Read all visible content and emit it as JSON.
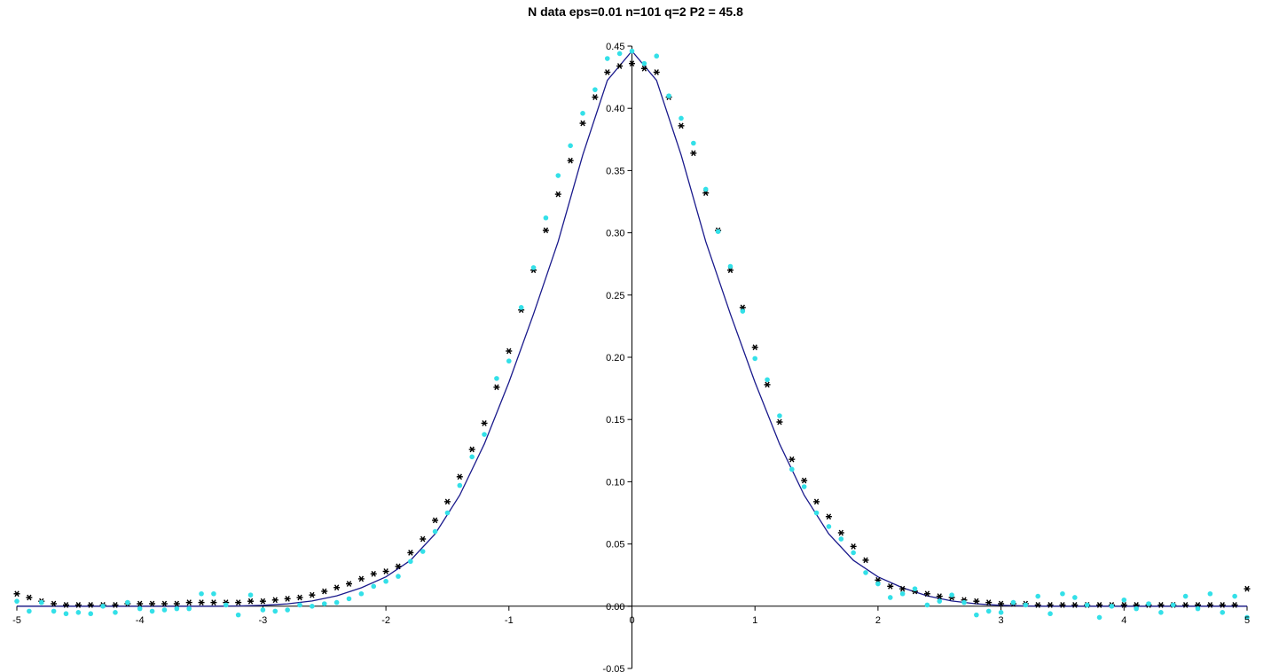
{
  "chart_data": {
    "type": "scatter",
    "title": "N data eps=0.01 n=101 q=2 P2 = 45.8",
    "xlabel": "",
    "ylabel": "",
    "xlim": [
      -5,
      5
    ],
    "ylim": [
      -0.05,
      0.45
    ],
    "x_ticks": [
      "-5",
      "-4",
      "-3",
      "-2",
      "-1",
      "0",
      "1",
      "2",
      "3",
      "4",
      "5"
    ],
    "y_ticks": [
      "0.45",
      "0.40",
      "0.35",
      "0.30",
      "0.25",
      "0.20",
      "0.15",
      "0.10",
      "0.05",
      "0.00",
      "-0.05"
    ],
    "grid": false,
    "legend": "none",
    "colors": {
      "curve": "#1a1a8c",
      "star": "#000000",
      "dot": "#33e0e8",
      "axis": "#000000"
    },
    "series": [
      {
        "style": "line",
        "x": [
          -5.0,
          -4.8,
          -4.6,
          -4.4,
          -4.2,
          -4.0,
          -3.8,
          -3.6,
          -3.4,
          -3.2,
          -3.0,
          -2.8,
          -2.6,
          -2.4,
          -2.2,
          -2.0,
          -1.8,
          -1.6,
          -1.4,
          -1.2,
          -1.0,
          -0.8,
          -0.6,
          -0.4,
          -0.2,
          0.0,
          0.2,
          0.4,
          0.6,
          0.8,
          1.0,
          1.2,
          1.4,
          1.6,
          1.8,
          2.0,
          2.2,
          2.4,
          2.6,
          2.8,
          3.0,
          3.2,
          3.4,
          3.6,
          3.8,
          4.0,
          4.2,
          4.4,
          4.6,
          4.8,
          5.0
        ],
        "y": [
          0.0,
          0.0,
          0.0,
          0.0,
          0.0,
          0.0,
          0.0,
          0.0,
          0.0,
          0.0002,
          0.0007,
          0.0019,
          0.0042,
          0.0083,
          0.0148,
          0.0236,
          0.0368,
          0.0581,
          0.0892,
          0.1304,
          0.18,
          0.2347,
          0.293,
          0.3625,
          0.4225,
          0.446,
          0.4225,
          0.3625,
          0.293,
          0.2347,
          0.18,
          0.1304,
          0.0892,
          0.0581,
          0.0368,
          0.0236,
          0.0148,
          0.0083,
          0.0042,
          0.0019,
          0.0007,
          0.0002,
          0.0,
          0.0,
          0.0,
          0.0,
          0.0,
          0.0,
          0.0,
          0.0,
          0.0
        ]
      },
      {
        "style": "star",
        "x": [
          -5.0,
          -4.9,
          -4.8,
          -4.7,
          -4.6,
          -4.5,
          -4.4,
          -4.3,
          -4.2,
          -4.1,
          -4.0,
          -3.9,
          -3.8,
          -3.7,
          -3.6,
          -3.5,
          -3.4,
          -3.3,
          -3.2,
          -3.1,
          -3.0,
          -2.9,
          -2.8,
          -2.7,
          -2.6,
          -2.5,
          -2.4,
          -2.3,
          -2.2,
          -2.1,
          -2.0,
          -1.9,
          -1.8,
          -1.7,
          -1.6,
          -1.5,
          -1.4,
          -1.3,
          -1.2,
          -1.1,
          -1.0,
          -0.9,
          -0.8,
          -0.7,
          -0.6,
          -0.5,
          -0.4,
          -0.3,
          -0.2,
          -0.1,
          0.0,
          0.1,
          0.2,
          0.3,
          0.4,
          0.5,
          0.6,
          0.7,
          0.8,
          0.9,
          1.0,
          1.1,
          1.2,
          1.3,
          1.4,
          1.5,
          1.6,
          1.7,
          1.8,
          1.9,
          2.0,
          2.1,
          2.2,
          2.3,
          2.4,
          2.5,
          2.6,
          2.7,
          2.8,
          2.9,
          3.0,
          3.1,
          3.2,
          3.3,
          3.4,
          3.5,
          3.6,
          3.7,
          3.8,
          3.9,
          4.0,
          4.1,
          4.2,
          4.3,
          4.4,
          4.5,
          4.6,
          4.7,
          4.8,
          4.9,
          5.0
        ],
        "y": [
          0.01,
          0.007,
          0.004,
          0.002,
          0.001,
          0.001,
          0.001,
          0.001,
          0.001,
          0.002,
          0.002,
          0.002,
          0.002,
          0.002,
          0.003,
          0.003,
          0.003,
          0.003,
          0.003,
          0.004,
          0.004,
          0.005,
          0.006,
          0.007,
          0.009,
          0.012,
          0.015,
          0.018,
          0.022,
          0.026,
          0.028,
          0.032,
          0.043,
          0.054,
          0.069,
          0.084,
          0.104,
          0.126,
          0.147,
          0.176,
          0.205,
          0.238,
          0.27,
          0.302,
          0.331,
          0.358,
          0.388,
          0.409,
          0.429,
          0.434,
          0.436,
          0.432,
          0.429,
          0.409,
          0.386,
          0.364,
          0.332,
          0.302,
          0.27,
          0.24,
          0.208,
          0.178,
          0.148,
          0.118,
          0.101,
          0.084,
          0.072,
          0.059,
          0.048,
          0.037,
          0.021,
          0.016,
          0.014,
          0.012,
          0.01,
          0.008,
          0.007,
          0.005,
          0.004,
          0.003,
          0.002,
          0.002,
          0.002,
          0.001,
          0.001,
          0.001,
          0.001,
          0.001,
          0.001,
          0.001,
          0.001,
          0.001,
          0.001,
          0.001,
          0.001,
          0.001,
          0.001,
          0.001,
          0.001,
          0.001,
          0.014
        ]
      },
      {
        "style": "dot",
        "x": [
          -5.0,
          -4.9,
          -4.8,
          -4.7,
          -4.6,
          -4.5,
          -4.4,
          -4.3,
          -4.2,
          -4.1,
          -4.0,
          -3.9,
          -3.8,
          -3.7,
          -3.6,
          -3.5,
          -3.4,
          -3.3,
          -3.2,
          -3.1,
          -3.0,
          -2.9,
          -2.8,
          -2.7,
          -2.6,
          -2.5,
          -2.4,
          -2.3,
          -2.2,
          -2.1,
          -2.0,
          -1.9,
          -1.8,
          -1.7,
          -1.6,
          -1.5,
          -1.4,
          -1.3,
          -1.2,
          -1.1,
          -1.0,
          -0.9,
          -0.8,
          -0.7,
          -0.6,
          -0.5,
          -0.4,
          -0.3,
          -0.2,
          -0.1,
          0.0,
          0.1,
          0.2,
          0.3,
          0.4,
          0.5,
          0.6,
          0.7,
          0.8,
          0.9,
          1.0,
          1.1,
          1.2,
          1.3,
          1.4,
          1.5,
          1.6,
          1.7,
          1.8,
          1.9,
          2.0,
          2.1,
          2.2,
          2.3,
          2.4,
          2.5,
          2.6,
          2.7,
          2.8,
          2.9,
          3.0,
          3.1,
          3.2,
          3.3,
          3.4,
          3.5,
          3.6,
          3.7,
          3.8,
          3.9,
          4.0,
          4.1,
          4.2,
          4.3,
          4.4,
          4.5,
          4.6,
          4.7,
          4.8,
          4.9,
          5.0
        ],
        "y": [
          0.004,
          -0.004,
          0.003,
          -0.004,
          -0.006,
          -0.005,
          -0.006,
          0.0,
          -0.005,
          0.003,
          -0.002,
          -0.004,
          -0.003,
          -0.002,
          -0.002,
          0.01,
          0.01,
          0.001,
          -0.007,
          0.009,
          -0.003,
          -0.004,
          -0.003,
          0.001,
          0.0,
          0.002,
          0.003,
          0.006,
          0.01,
          0.016,
          0.02,
          0.024,
          0.036,
          0.044,
          0.06,
          0.075,
          0.097,
          0.12,
          0.138,
          0.183,
          0.197,
          0.24,
          0.272,
          0.312,
          0.346,
          0.37,
          0.396,
          0.415,
          0.44,
          0.444,
          0.446,
          0.436,
          0.442,
          0.41,
          0.392,
          0.372,
          0.335,
          0.301,
          0.273,
          0.237,
          0.199,
          0.182,
          0.153,
          0.11,
          0.096,
          0.075,
          0.064,
          0.054,
          0.043,
          0.027,
          0.018,
          0.007,
          0.01,
          0.014,
          0.001,
          0.004,
          0.009,
          0.003,
          -0.007,
          -0.004,
          -0.005,
          0.003,
          0.001,
          0.008,
          -0.006,
          0.01,
          0.007,
          0.001,
          -0.009,
          0.0,
          0.005,
          -0.002,
          0.002,
          -0.005,
          0.001,
          0.008,
          -0.002,
          0.01,
          -0.005,
          0.008,
          -0.009
        ]
      }
    ]
  }
}
